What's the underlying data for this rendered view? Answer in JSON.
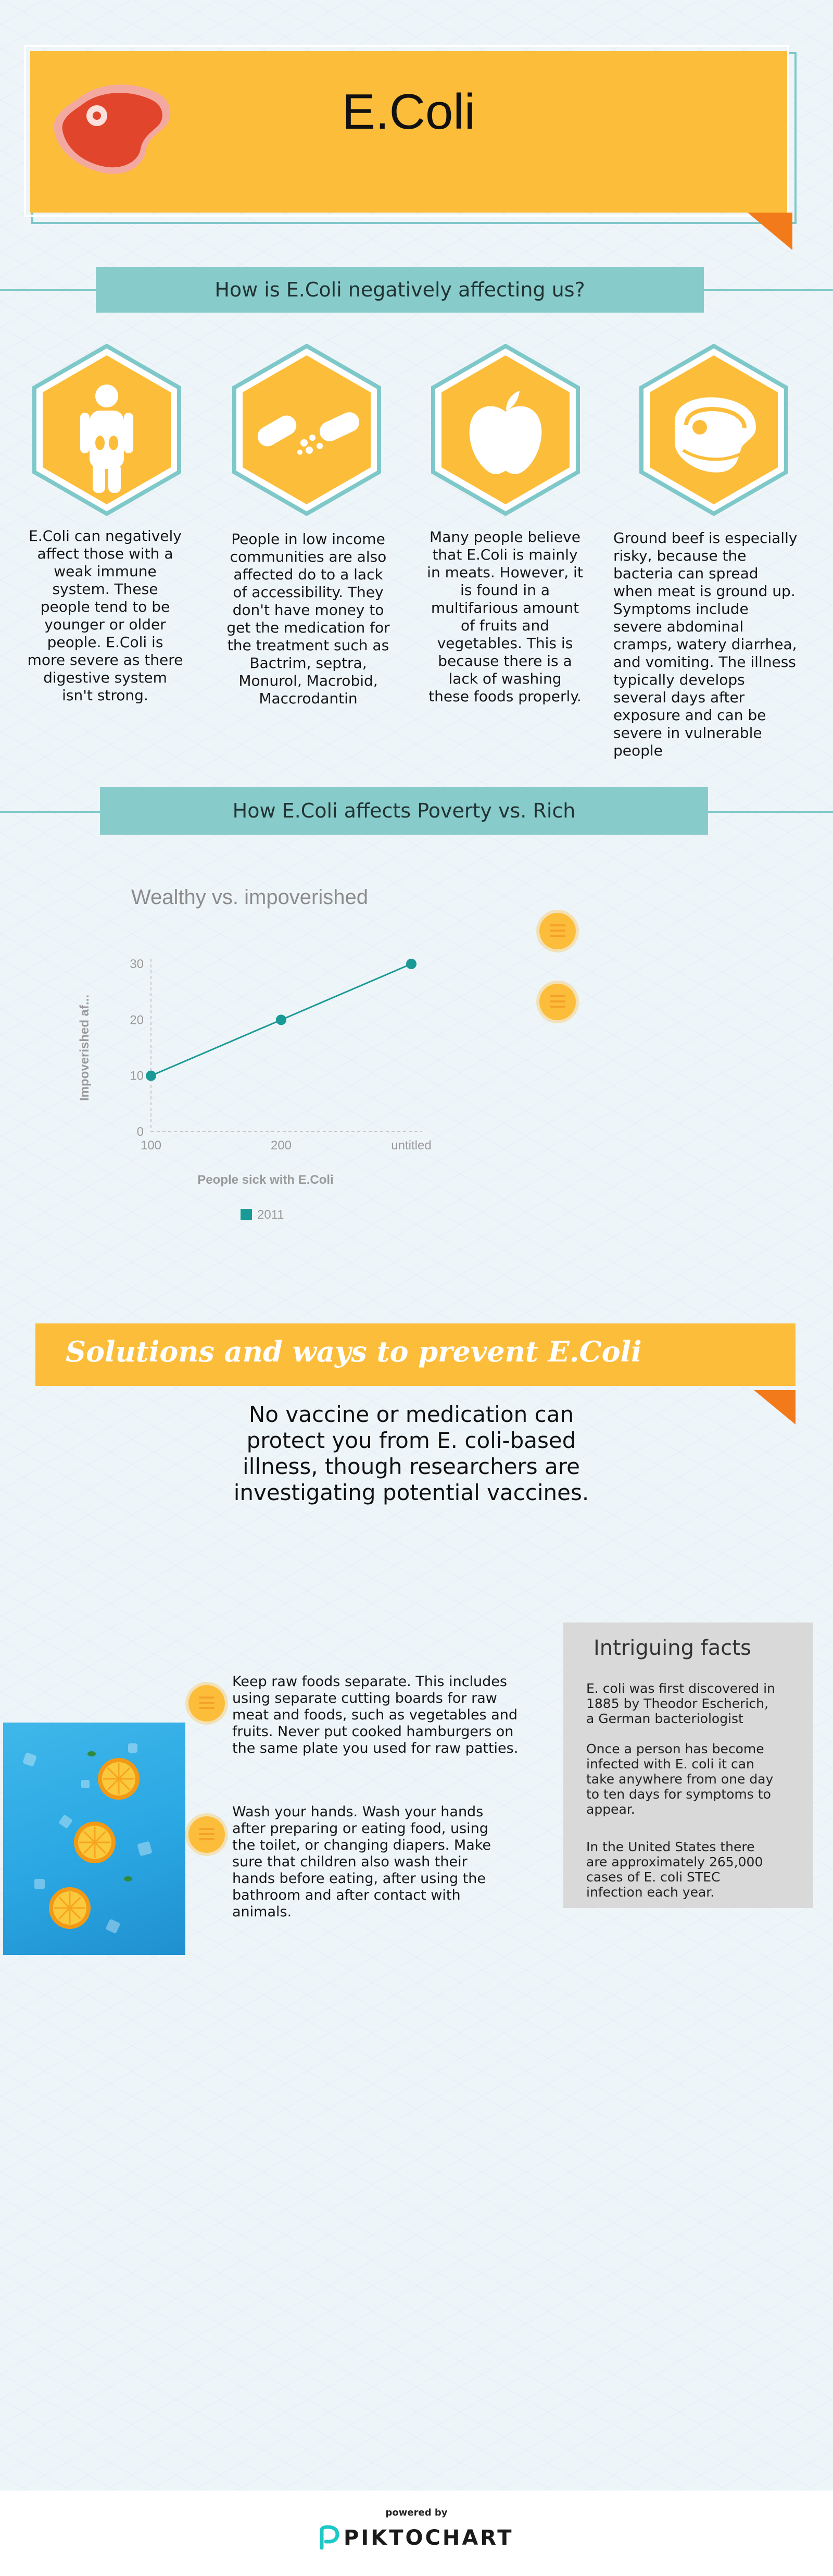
{
  "header": {
    "title": "E.Coli",
    "icon": "meat-steak-icon"
  },
  "section1": {
    "title": "How is E.Coli negatively affecting us?",
    "items": [
      {
        "icon": "body-organs-icon",
        "text": "E.Coli can negatively affect those with a weak immune system. These people tend to be younger or older people. E.Coli is more severe as there digestive system isn't strong."
      },
      {
        "icon": "pills-icon",
        "text": "People in low income communities are also affected do to a lack of accessibility. They don't have money to get the medication for the treatment such as Bactrim, septra, Monurol, Macrobid, Maccrodantin"
      },
      {
        "icon": "apple-icon",
        "text": "Many people believe that E.Coli is mainly in meats. However, it is found in a multifarious amount of  fruits and vegetables. This is because there is a lack of washing these foods properly."
      },
      {
        "icon": "meat-steak-icon",
        "text": "Ground beef is especially risky, because the bacteria can spread when meat is ground up. Symptoms include severe abdominal cramps, watery diarrhea, and vomiting. The illness typically develops several days after exposure and can be severe in vulnerable people"
      }
    ]
  },
  "section2": {
    "title": "How E.Coli affects Poverty vs. Rich"
  },
  "chart_data": {
    "type": "line",
    "title": "Wealthy vs. impoverished",
    "xlabel": "People sick with E.Coli",
    "ylabel": "Impoverished af...",
    "categories": [
      "100",
      "200",
      "untitled"
    ],
    "series": [
      {
        "name": "2011",
        "values": [
          10,
          20,
          30
        ],
        "color": "#1a9a96"
      }
    ],
    "yticks": [
      0,
      10,
      20,
      30
    ],
    "ylim": [
      0,
      30
    ],
    "grid": false,
    "legend": "bottom"
  },
  "solutions": {
    "title": "Solutions and ways to prevent E.Coli",
    "statement": "No vaccine or medication can protect you from E. coli-based illness, though researchers are investigating potential vaccines.",
    "tips": [
      {
        "icon": "list-icon",
        "text": "Keep raw foods separate. This includes using separate cutting boards for raw meat and foods, such as vegetables and fruits. Never put cooked hamburgers on the same plate you used for raw patties."
      },
      {
        "icon": "list-icon",
        "text": "Wash your hands. Wash your hands after preparing or eating food, using the toilet, or changing diapers. Make sure that children also wash their hands before eating, after using the bathroom and after contact with animals."
      }
    ],
    "photo": "oranges-on-ice-photo"
  },
  "facts": {
    "title": "Intriguing facts",
    "items": [
      "E. coli was first discovered in 1885 by Theodor Escherich, a German bacteriologist",
      "Once a person has become infected with E. coli it can take anywhere from one day to ten days for symptoms to appear.",
      "In the United States there are approximately 265,000 cases of E. coli STEC infection each year."
    ]
  },
  "footer": {
    "powered_by": "powered by",
    "brand": "PIKTOCHART",
    "brand_icon": "piktochart-logo-icon"
  },
  "colors": {
    "yellow": "#fcbd3b",
    "orange": "#f27a1a",
    "teal": "#88cbcb",
    "line": "#1a9a96"
  }
}
